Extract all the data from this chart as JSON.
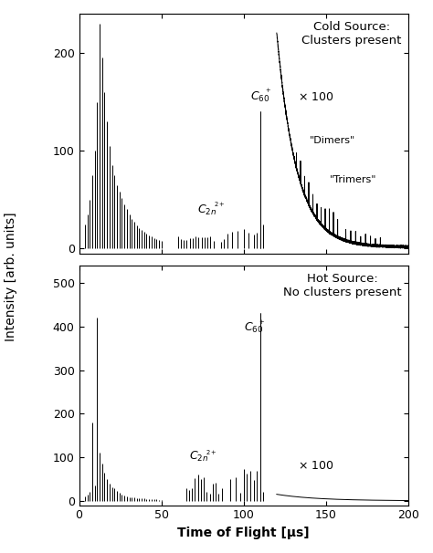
{
  "fig_width": 4.74,
  "fig_height": 6.06,
  "dpi": 100,
  "bg_color": "#ffffff",
  "top_panel": {
    "title": "Cold Source:\nClusters present",
    "xlim": [
      0,
      200
    ],
    "ylim": [
      -5,
      240
    ],
    "yticks": [
      0,
      100,
      200
    ],
    "xticks": [
      0,
      50,
      100,
      150,
      200
    ]
  },
  "bottom_panel": {
    "title": "Hot Source:\nNo clusters present",
    "xlabel": "Time of Flight [μs]",
    "xlim": [
      0,
      200
    ],
    "ylim": [
      -10,
      540
    ],
    "yticks": [
      0,
      100,
      200,
      300,
      400,
      500
    ],
    "xticks": [
      0,
      50,
      100,
      150,
      200
    ]
  },
  "shared_ylabel": "Intensity [arb. units]",
  "line_color": "#000000",
  "line_width": 0.7
}
